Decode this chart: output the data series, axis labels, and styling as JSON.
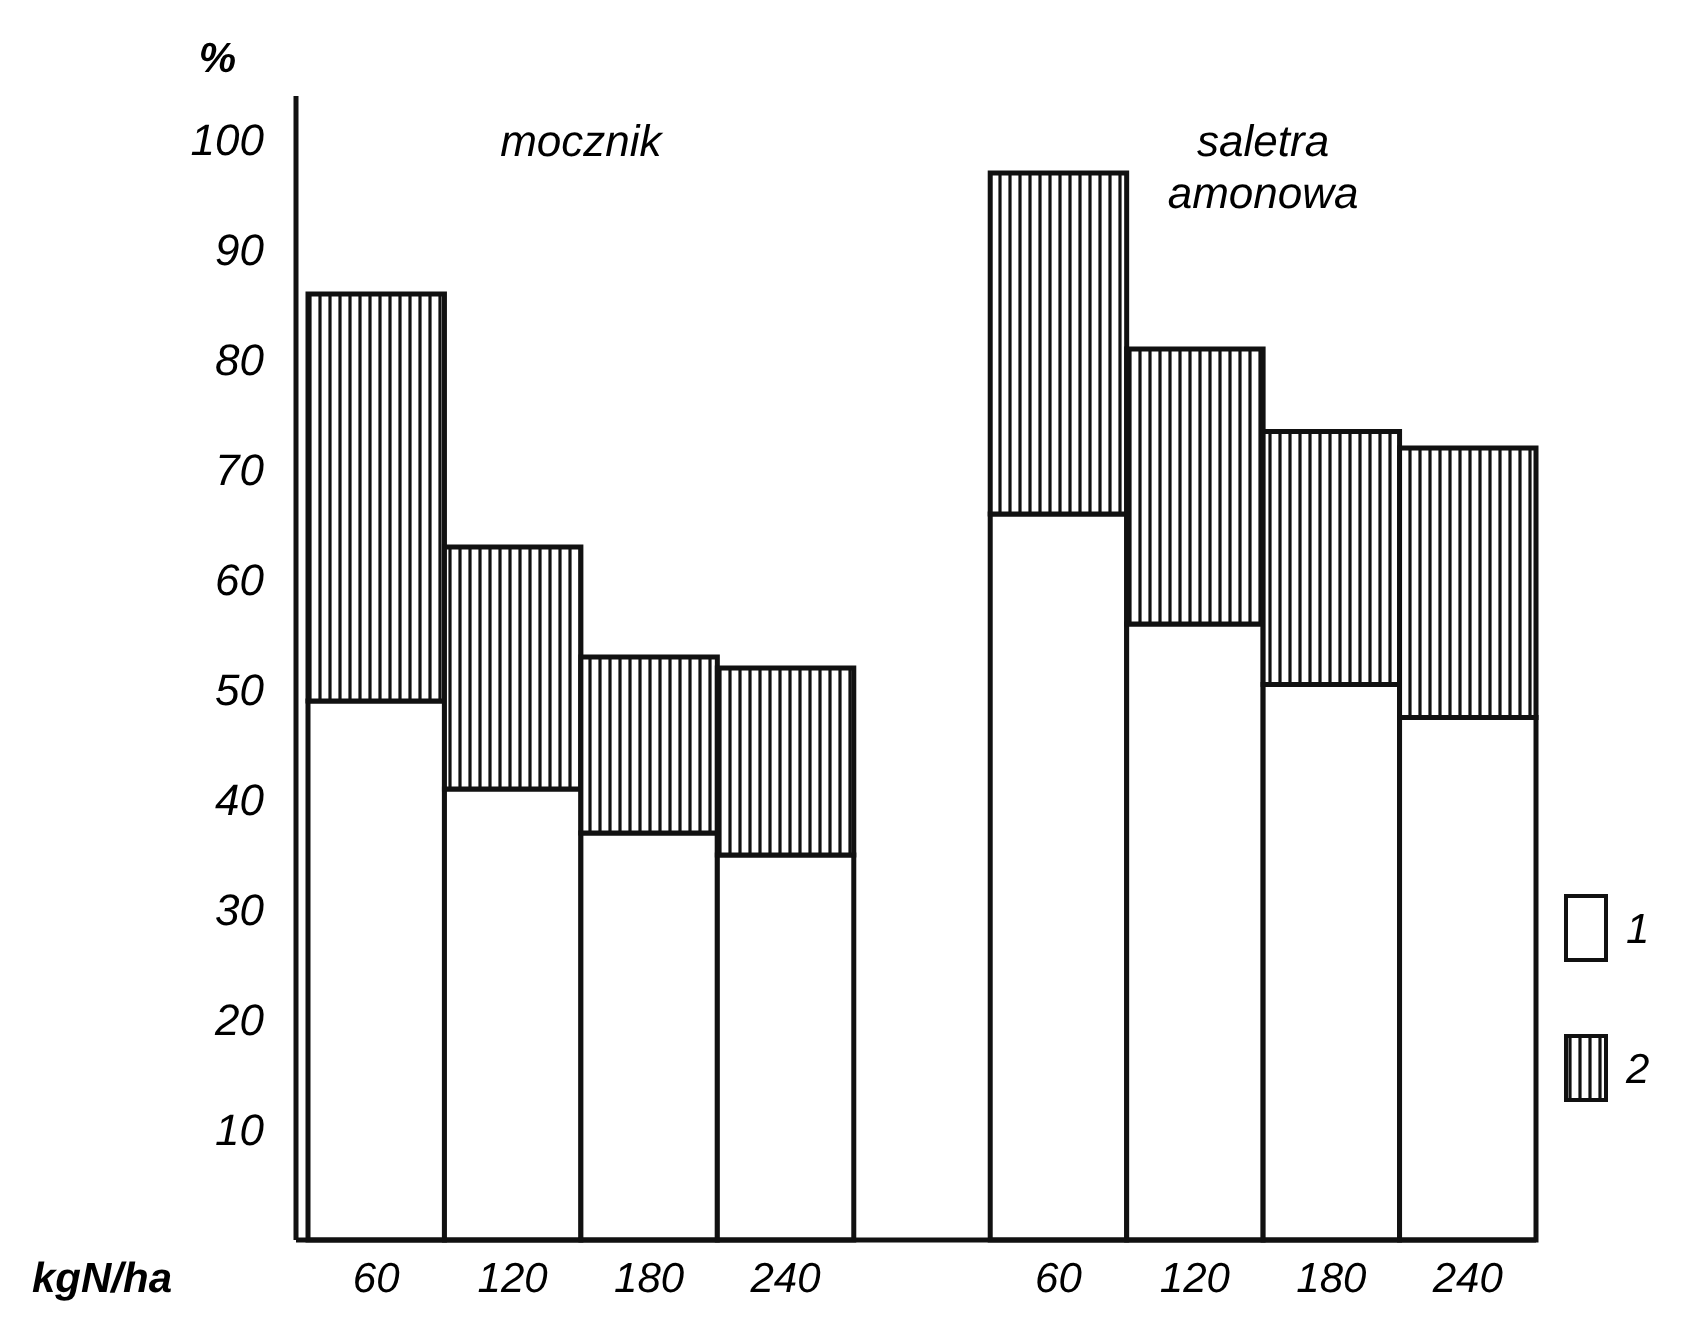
{
  "chart_data": {
    "type": "bar",
    "stacked": true,
    "ylabel": "%",
    "xlabel": "kgN/ha",
    "categories": [
      "60",
      "120",
      "180",
      "240",
      null,
      "60",
      "120",
      "180",
      "240"
    ],
    "series": [
      {
        "name": "1",
        "color": "#ffffff",
        "values": [
          49,
          41,
          37,
          35,
          null,
          66,
          56,
          50.5,
          47.5
        ]
      },
      {
        "name": "2",
        "color": "#111111",
        "values": [
          37,
          22,
          16,
          17,
          null,
          31,
          25,
          23,
          24.5
        ]
      }
    ],
    "ylim": [
      0,
      104
    ],
    "yticks": [
      10,
      20,
      30,
      40,
      50,
      60,
      70,
      80,
      90,
      100
    ],
    "annotations": [
      "mocznik",
      "saletra amonowa"
    ],
    "legend": "right",
    "grid": false
  }
}
